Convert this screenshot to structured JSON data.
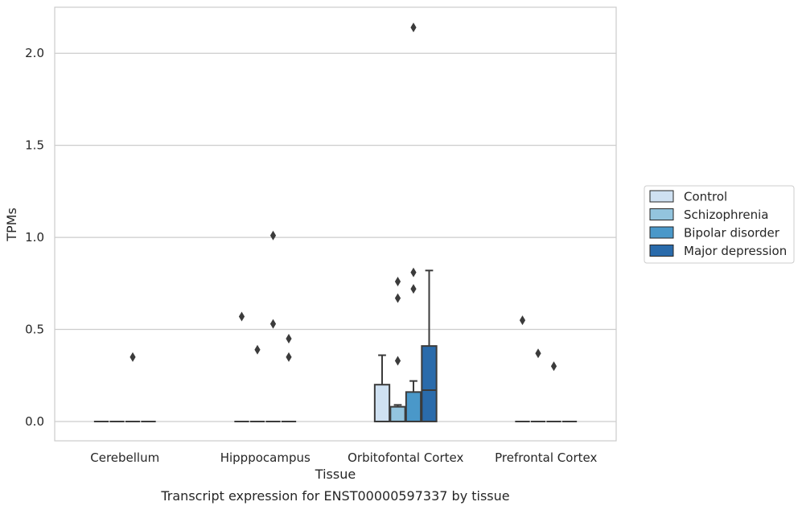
{
  "chart_data": {
    "type": "box",
    "xlabel": "Tissue",
    "ylabel": "TPMs",
    "caption": "Transcript expression for ENST00000597337 by tissue",
    "ylim": [
      -0.105,
      2.25
    ],
    "yticks": [
      "0.0",
      "0.5",
      "1.0",
      "1.5",
      "2.0"
    ],
    "ytick_values": [
      0.0,
      0.5,
      1.0,
      1.5,
      2.0
    ],
    "grid": "horizontal",
    "legend_position": "right",
    "categories": [
      "Cerebellum",
      "Hipppocampus",
      "Orbitofontal Cortex",
      "Prefrontal Cortex"
    ],
    "series": [
      {
        "name": "Control",
        "color": "#cfe1f2",
        "boxes": [
          {
            "category": "Cerebellum",
            "whislo": 0.0,
            "q1": 0.0,
            "median": 0.0,
            "q3": 0.0,
            "whishi": 0.0,
            "fliers": []
          },
          {
            "category": "Hipppocampus",
            "whislo": 0.0,
            "q1": 0.0,
            "median": 0.0,
            "q3": 0.0,
            "whishi": 0.0,
            "fliers": [
              0.57
            ]
          },
          {
            "category": "Orbitofontal Cortex",
            "whislo": 0.0,
            "q1": 0.0,
            "median": 0.0,
            "q3": 0.2,
            "whishi": 0.36,
            "fliers": []
          },
          {
            "category": "Prefrontal Cortex",
            "whislo": 0.0,
            "q1": 0.0,
            "median": 0.0,
            "q3": 0.0,
            "whishi": 0.0,
            "fliers": [
              0.55
            ]
          }
        ]
      },
      {
        "name": "Schizophrenia",
        "color": "#93c4de",
        "boxes": [
          {
            "category": "Cerebellum",
            "whislo": 0.0,
            "q1": 0.0,
            "median": 0.0,
            "q3": 0.0,
            "whishi": 0.0,
            "fliers": []
          },
          {
            "category": "Hipppocampus",
            "whislo": 0.0,
            "q1": 0.0,
            "median": 0.0,
            "q3": 0.0,
            "whishi": 0.0,
            "fliers": [
              0.39
            ]
          },
          {
            "category": "Orbitofontal Cortex",
            "whislo": 0.0,
            "q1": 0.0,
            "median": 0.0,
            "q3": 0.08,
            "whishi": 0.09,
            "fliers": [
              0.76,
              0.67,
              0.33
            ]
          },
          {
            "category": "Prefrontal Cortex",
            "whislo": 0.0,
            "q1": 0.0,
            "median": 0.0,
            "q3": 0.0,
            "whishi": 0.0,
            "fliers": [
              0.37
            ]
          }
        ]
      },
      {
        "name": "Bipolar disorder",
        "color": "#4a98c9",
        "boxes": [
          {
            "category": "Cerebellum",
            "whislo": 0.0,
            "q1": 0.0,
            "median": 0.0,
            "q3": 0.0,
            "whishi": 0.0,
            "fliers": [
              0.35
            ]
          },
          {
            "category": "Hipppocampus",
            "whislo": 0.0,
            "q1": 0.0,
            "median": 0.0,
            "q3": 0.0,
            "whishi": 0.0,
            "fliers": [
              1.01,
              0.53
            ]
          },
          {
            "category": "Orbitofontal Cortex",
            "whislo": 0.0,
            "q1": 0.0,
            "median": 0.0,
            "q3": 0.16,
            "whishi": 0.22,
            "fliers": [
              2.14,
              0.81,
              0.72
            ]
          },
          {
            "category": "Prefrontal Cortex",
            "whislo": 0.0,
            "q1": 0.0,
            "median": 0.0,
            "q3": 0.0,
            "whishi": 0.0,
            "fliers": [
              0.3
            ]
          }
        ]
      },
      {
        "name": "Major depression",
        "color": "#2a6bab",
        "boxes": [
          {
            "category": "Cerebellum",
            "whislo": 0.0,
            "q1": 0.0,
            "median": 0.0,
            "q3": 0.0,
            "whishi": 0.0,
            "fliers": []
          },
          {
            "category": "Hipppocampus",
            "whislo": 0.0,
            "q1": 0.0,
            "median": 0.0,
            "q3": 0.0,
            "whishi": 0.0,
            "fliers": [
              0.45,
              0.35
            ]
          },
          {
            "category": "Orbitofontal Cortex",
            "whislo": 0.0,
            "q1": 0.0,
            "median": 0.17,
            "q3": 0.41,
            "whishi": 0.82,
            "fliers": []
          },
          {
            "category": "Prefrontal Cortex",
            "whislo": 0.0,
            "q1": 0.0,
            "median": 0.0,
            "q3": 0.0,
            "whishi": 0.0,
            "fliers": []
          }
        ]
      }
    ]
  }
}
